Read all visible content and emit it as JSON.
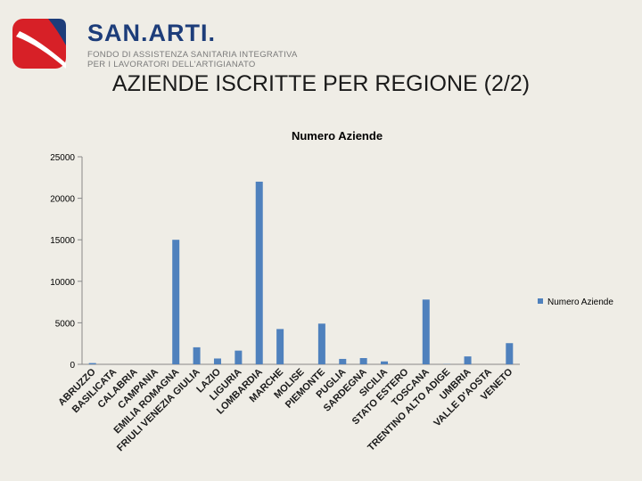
{
  "logo": {
    "name": "SAN.ARTI.",
    "line1": "FONDO DI ASSISTENZA SANITARIA INTEGRATIVA",
    "line2": "PER I LAVORATORI DELL'ARTIGIANATO"
  },
  "slide_title": "AZIENDE ISCRITTE PER REGIONE (2/2)",
  "colors": {
    "bar": "#4f81bd",
    "logo_red": "#d72027",
    "logo_blue": "#1d3d7a"
  },
  "chart_data": {
    "type": "bar",
    "title": "Numero Aziende",
    "categories": [
      "ABRUZZO",
      "BASILICATA",
      "CALABRIA",
      "CAMPANIA",
      "EMILIA ROMAGNA",
      "FRIULI VENEZIA GIULIA",
      "LAZIO",
      "LIGURIA",
      "LOMBARDIA",
      "MARCHE",
      "MOLISE",
      "PIEMONTE",
      "PUGLIA",
      "SARDEGNA",
      "SICILIA",
      "STATO ESTERO",
      "TOSCANA",
      "TRENTINO ALTO ADIGE",
      "UMBRIA",
      "VALLE D'AOSTA",
      "VENETO"
    ],
    "series": [
      {
        "name": "Numero Aziende",
        "values": [
          150,
          0,
          0,
          0,
          15000,
          2050,
          700,
          1650,
          22000,
          4250,
          0,
          4900,
          650,
          750,
          350,
          0,
          7800,
          30,
          950,
          0,
          2550
        ]
      }
    ],
    "ylim": [
      0,
      25000
    ],
    "yticks": [
      0,
      5000,
      10000,
      15000,
      20000,
      25000
    ],
    "legend": "right"
  }
}
